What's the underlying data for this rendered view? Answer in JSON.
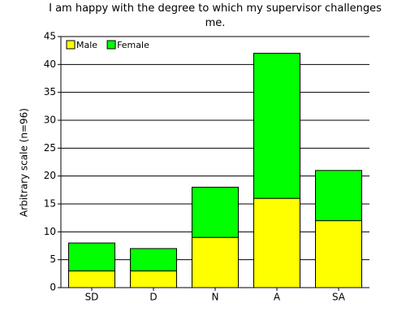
{
  "chart_data": {
    "type": "stacked_bar",
    "title": "I am happy with the degree to which my supervisor challenges me.",
    "y_label": "Arbitrary scale (n=96)",
    "categories": [
      "SD",
      "D",
      "N",
      "A",
      "SA"
    ],
    "series": [
      {
        "name": "Male",
        "color": "#ffff00",
        "values": [
          3,
          3,
          9,
          16,
          12
        ]
      },
      {
        "name": "Female",
        "color": "#00ff00",
        "values": [
          5,
          4,
          9,
          26,
          9
        ]
      }
    ],
    "ylim": [
      0,
      45
    ],
    "yticks": [
      0,
      5,
      10,
      15,
      20,
      25,
      30,
      35,
      40,
      45
    ],
    "grid": true,
    "legend": "top-left"
  }
}
